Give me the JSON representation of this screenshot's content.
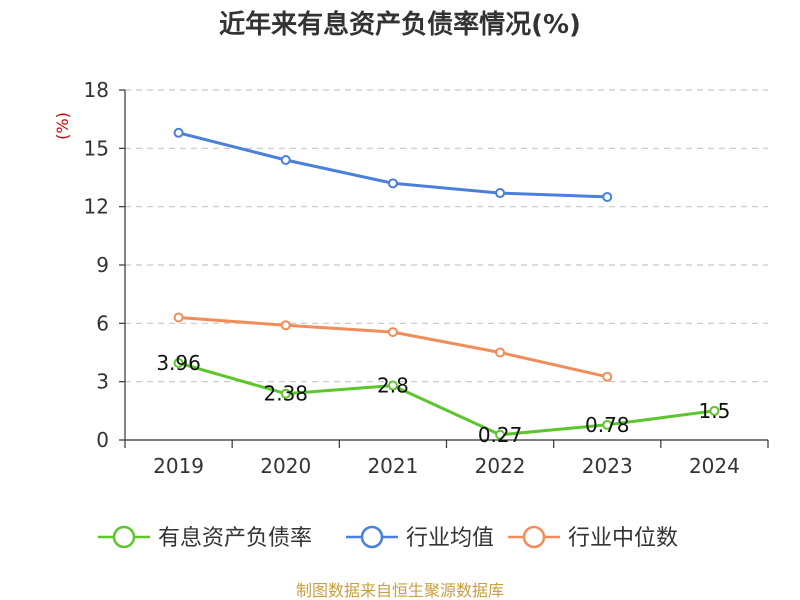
{
  "chart_data": {
    "type": "line",
    "title": "近年来有息资产负债率情况(%)",
    "ylabel": "(%)",
    "categories": [
      "2019",
      "2020",
      "2021",
      "2022",
      "2023",
      "2024"
    ],
    "ylim": [
      0,
      18
    ],
    "yticks": [
      0,
      3,
      6,
      9,
      12,
      15,
      18
    ],
    "grid": true,
    "legend_position": "bottom",
    "series": [
      {
        "name": "有息资产负债率",
        "color": "#5cc62c",
        "values": [
          3.96,
          2.38,
          2.8,
          0.27,
          0.78,
          1.5
        ],
        "labels": [
          "3.96",
          "2.38",
          "2.8",
          "0.27",
          "0.78",
          "1.5"
        ]
      },
      {
        "name": "行业均值",
        "color": "#4a7fdb",
        "values": [
          15.8,
          14.4,
          13.2,
          12.7,
          12.5,
          null
        ]
      },
      {
        "name": "行业中位数",
        "color": "#f28c58",
        "values": [
          6.3,
          5.9,
          5.55,
          4.5,
          3.25,
          null
        ]
      }
    ]
  },
  "source": {
    "text": "制图数据来自恒生聚源数据库",
    "color": "#c8a040"
  },
  "unit_color": "#cc0000"
}
